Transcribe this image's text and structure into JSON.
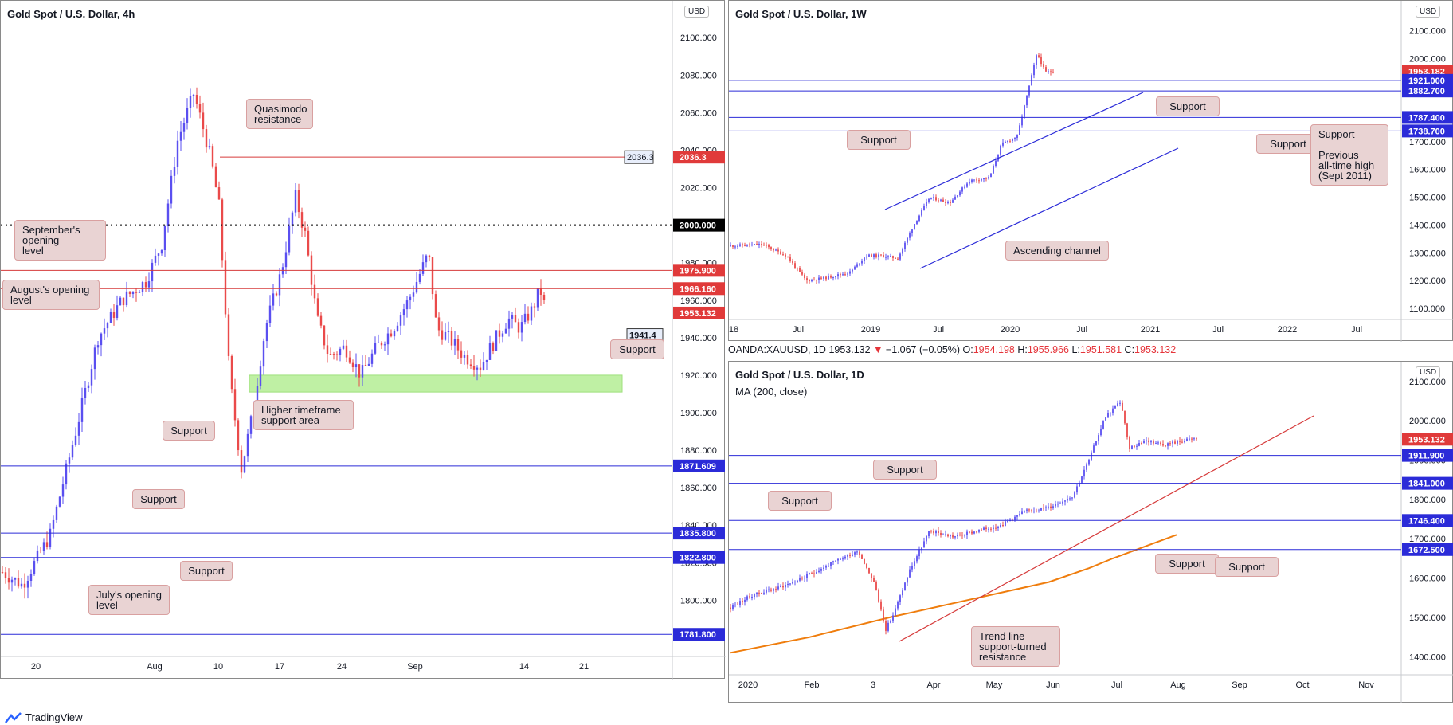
{
  "footer": {
    "brand": "TradingView"
  },
  "colors": {
    "bull": "#5a4ff0",
    "bear": "#ea4a4a",
    "support_line": "#2b2bd8",
    "resistance_line": "#d63a3a",
    "ma": "#ef7d0d",
    "zone": "#bff0a4",
    "annotation": "#e9d3d3"
  },
  "panels": {
    "h4": {
      "title": "Gold Spot / U.S. Dollar, 4h",
      "currency": "USD",
      "annotations": [
        {
          "name": "quasimodo-resistance",
          "text": "Quasimodo\nresistance"
        },
        {
          "name": "september-opening-level",
          "text": "September's opening\nlevel"
        },
        {
          "name": "august-opening-level",
          "text": "August's opening\nlevel"
        },
        {
          "name": "support-1941",
          "text": "Support"
        },
        {
          "name": "higher-timeframe-support-area",
          "text": "Higher timeframe\nsupport area"
        },
        {
          "name": "support-1871",
          "text": "Support"
        },
        {
          "name": "support-1835",
          "text": "Support"
        },
        {
          "name": "support-1822",
          "text": "Support"
        },
        {
          "name": "july-opening-level",
          "text": "July's opening\nlevel"
        }
      ]
    },
    "w1": {
      "title": "Gold Spot / U.S. Dollar, 1W",
      "currency": "USD",
      "annotations": [
        {
          "name": "support-1882",
          "text": "Support"
        },
        {
          "name": "support-1738",
          "text": "Support"
        },
        {
          "name": "support-1787",
          "text": "Support"
        },
        {
          "name": "support-previous-ath",
          "text": "Support\n\nPrevious\nall-time high\n(Sept 2011)"
        },
        {
          "name": "ascending-channel",
          "text": "Ascending channel"
        }
      ]
    },
    "d1": {
      "title": "Gold Spot / U.S. Dollar, 1D",
      "currency": "USD",
      "indicator": "MA (200, close)",
      "infobar": {
        "symbol": "OANDA:XAUUSD, 1D",
        "last": "1953.132",
        "change": "−1.067 (−0.05%)",
        "o_label": "O:",
        "o": "1954.198",
        "h_label": "H:",
        "h": "1955.966",
        "l_label": "L:",
        "l": "1951.581",
        "c_label": "C:",
        "c": "1953.132"
      },
      "annotations": [
        {
          "name": "support-1911",
          "text": "Support"
        },
        {
          "name": "support-1841",
          "text": "Support"
        },
        {
          "name": "support-1746",
          "text": "Support"
        },
        {
          "name": "support-1672",
          "text": "Support"
        },
        {
          "name": "trend-line-support-turned-resistance",
          "text": "Trend line\nsupport-turned\nresistance"
        }
      ]
    }
  },
  "chart_data": [
    {
      "type": "candlestick",
      "title": "Gold Spot / U.S. Dollar, 4h",
      "ylim": [
        1770,
        2112
      ],
      "y_ticks": [
        "2100.000",
        "2080.000",
        "2060.000",
        "2040.000",
        "2020.000",
        "2000.000",
        "1980.000",
        "1960.000",
        "1940.000",
        "1920.000",
        "1900.000",
        "1880.000",
        "1860.000",
        "1840.000",
        "1820.000",
        "1800.000"
      ],
      "y_tick_values": [
        2100,
        2080,
        2060,
        2040,
        2020,
        2000,
        1980,
        1960,
        1940,
        1920,
        1900,
        1880,
        1860,
        1840,
        1820,
        1800
      ],
      "x_ticks": [
        "20",
        "Aug",
        "10",
        "17",
        "24",
        "Sep",
        "14",
        "21"
      ],
      "path": [
        [
          0,
          1815
        ],
        [
          25,
          1808
        ],
        [
          60,
          1835
        ],
        [
          95,
          1895
        ],
        [
          120,
          1940
        ],
        [
          150,
          1960
        ],
        [
          180,
          1970
        ],
        [
          200,
          1990
        ],
        [
          220,
          2045
        ],
        [
          240,
          2070
        ],
        [
          250,
          2055
        ],
        [
          262,
          2035
        ],
        [
          272,
          2010
        ],
        [
          285,
          1920
        ],
        [
          300,
          1870
        ],
        [
          312,
          1895
        ],
        [
          330,
          1945
        ],
        [
          350,
          1975
        ],
        [
          368,
          2015
        ],
        [
          380,
          1995
        ],
        [
          395,
          1950
        ],
        [
          410,
          1930
        ],
        [
          430,
          1935
        ],
        [
          450,
          1920
        ],
        [
          470,
          1935
        ],
        [
          490,
          1945
        ],
        [
          510,
          1960
        ],
        [
          525,
          1975
        ],
        [
          535,
          1985
        ],
        [
          545,
          1945
        ],
        [
          560,
          1940
        ],
        [
          580,
          1930
        ],
        [
          600,
          1925
        ],
        [
          620,
          1940
        ],
        [
          635,
          1950
        ],
        [
          650,
          1945
        ],
        [
          665,
          1955
        ],
        [
          675,
          1966
        ],
        [
          683,
          1953
        ]
      ],
      "levels": [
        {
          "value": 2036.3,
          "label": "2036.3",
          "kind": "resistance"
        },
        {
          "value": 2000.0,
          "label": "2000.000",
          "kind": "round"
        },
        {
          "value": 1975.9,
          "label": "1975.900",
          "kind": "resistance"
        },
        {
          "value": 1966.16,
          "label": "1966.160",
          "kind": "resistance"
        },
        {
          "value": 1953.132,
          "label": "1953.132",
          "kind": "price"
        },
        {
          "value": 1941.4,
          "label": "1941.4",
          "kind": "support"
        },
        {
          "value": 1871.609,
          "label": "1871.609",
          "kind": "support"
        },
        {
          "value": 1835.8,
          "label": "1835.800",
          "kind": "support"
        },
        {
          "value": 1822.8,
          "label": "1822.800",
          "kind": "support"
        },
        {
          "value": 1781.8,
          "label": "1781.800",
          "kind": "support"
        }
      ],
      "zone": {
        "from": 1911,
        "to": 1920
      }
    },
    {
      "type": "candlestick",
      "title": "Gold Spot / U.S. Dollar, 1W",
      "ylim": [
        1060,
        2150
      ],
      "y_ticks": [
        "2100.000",
        "2000.000",
        "1900.000",
        "1800.000",
        "1700.000",
        "1600.000",
        "1500.000",
        "1400.000",
        "1300.000",
        "1200.000",
        "1100.000"
      ],
      "y_tick_values": [
        2100,
        2000,
        1900,
        1800,
        1700,
        1600,
        1500,
        1400,
        1300,
        1200,
        1100
      ],
      "x_ticks": [
        "18",
        "Jul",
        "2019",
        "Jul",
        "2020",
        "Jul",
        "2021",
        "Jul",
        "2022",
        "Jul"
      ],
      "path": [
        [
          0,
          1325
        ],
        [
          40,
          1330
        ],
        [
          70,
          1290
        ],
        [
          95,
          1200
        ],
        [
          120,
          1210
        ],
        [
          150,
          1230
        ],
        [
          170,
          1290
        ],
        [
          190,
          1290
        ],
        [
          210,
          1280
        ],
        [
          230,
          1400
        ],
        [
          250,
          1500
        ],
        [
          275,
          1480
        ],
        [
          300,
          1560
        ],
        [
          325,
          1570
        ],
        [
          340,
          1690
        ],
        [
          360,
          1720
        ],
        [
          375,
          1900
        ],
        [
          385,
          2020
        ],
        [
          395,
          1950
        ],
        [
          405,
          1953
        ]
      ],
      "levels": [
        {
          "value": 1953.182,
          "label": "1953.182",
          "kind": "price"
        },
        {
          "value": 1921.0,
          "label": "1921.000",
          "kind": "support"
        },
        {
          "value": 1882.7,
          "label": "1882.700",
          "kind": "support"
        },
        {
          "value": 1787.4,
          "label": "1787.400",
          "kind": "support"
        },
        {
          "value": 1738.7,
          "label": "1738.700",
          "kind": "support"
        }
      ]
    },
    {
      "type": "candlestick",
      "title": "Gold Spot / U.S. Dollar, 1D",
      "ylim": [
        1360,
        2130
      ],
      "y_ticks": [
        "2100.000",
        "2000.000",
        "1900.000",
        "1800.000",
        "1700.000",
        "1600.000",
        "1500.000",
        "1400.000"
      ],
      "y_tick_values": [
        2100,
        2000,
        1900,
        1800,
        1700,
        1600,
        1500,
        1400
      ],
      "x_ticks": [
        "2020",
        "Feb",
        "3",
        "Apr",
        "May",
        "Jun",
        "Jul",
        "Aug",
        "Sep",
        "Oct",
        "Nov"
      ],
      "path": [
        [
          0,
          1525
        ],
        [
          30,
          1560
        ],
        [
          60,
          1575
        ],
        [
          90,
          1600
        ],
        [
          130,
          1640
        ],
        [
          160,
          1670
        ],
        [
          180,
          1590
        ],
        [
          195,
          1470
        ],
        [
          205,
          1510
        ],
        [
          225,
          1620
        ],
        [
          250,
          1720
        ],
        [
          280,
          1705
        ],
        [
          310,
          1720
        ],
        [
          340,
          1735
        ],
        [
          370,
          1770
        ],
        [
          400,
          1780
        ],
        [
          430,
          1810
        ],
        [
          450,
          1900
        ],
        [
          470,
          2010
        ],
        [
          490,
          2050
        ],
        [
          500,
          1930
        ],
        [
          520,
          1950
        ],
        [
          545,
          1940
        ],
        [
          570,
          1950
        ],
        [
          585,
          1955
        ]
      ],
      "ma": [
        [
          0,
          1410
        ],
        [
          100,
          1450
        ],
        [
          200,
          1500
        ],
        [
          300,
          1545
        ],
        [
          400,
          1590
        ],
        [
          450,
          1625
        ],
        [
          480,
          1650
        ],
        [
          520,
          1680
        ],
        [
          560,
          1710
        ]
      ],
      "levels": [
        {
          "value": 1953.132,
          "label": "1953.132",
          "kind": "price"
        },
        {
          "value": 1911.9,
          "label": "1911.900",
          "kind": "support"
        },
        {
          "value": 1841.0,
          "label": "1841.000",
          "kind": "support"
        },
        {
          "value": 1746.4,
          "label": "1746.400",
          "kind": "support"
        },
        {
          "value": 1672.5,
          "label": "1672.500",
          "kind": "support"
        }
      ]
    }
  ]
}
